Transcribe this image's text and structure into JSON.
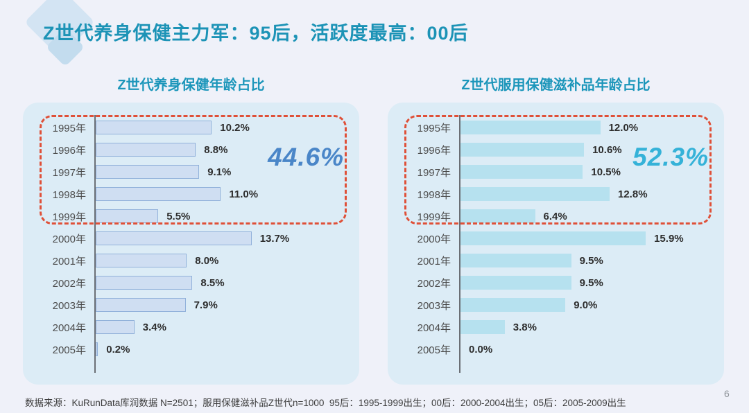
{
  "slide": {
    "title": "Z世代养身保健主力军：95后，活跃度最高：00后",
    "footnote": "数据来源：KuRunData库润数据 N=2501；服用保健滋补品Z世代n=1000  95后：1995-1999出生；00后：2000-2004出生；05后：2005-2009出生",
    "page_number": "6"
  },
  "colors": {
    "page_background": "#eff1f9",
    "panel_background": "#dcecf6",
    "title_teal": "#1c93b6",
    "subtitle_teal": "#1c96ba",
    "left_bar_fill": "#cfdef2",
    "left_bar_border": "#91b1da",
    "right_bar_fill": "#b6e1ef",
    "highlight_box_red": "#df5038",
    "left_big_number_blue": "#4a86c8",
    "right_big_number_cyan": "#35b2d8"
  },
  "chart_data": [
    {
      "type": "bar",
      "orientation": "horizontal",
      "title": "Z世代养身保健年龄占比",
      "categories": [
        "1995年",
        "1996年",
        "1997年",
        "1998年",
        "1999年",
        "2000年",
        "2001年",
        "2002年",
        "2003年",
        "2004年",
        "2005年"
      ],
      "values": [
        10.2,
        8.8,
        9.1,
        11.0,
        5.5,
        13.7,
        8.0,
        8.5,
        7.9,
        3.4,
        0.2
      ],
      "value_labels": [
        "10.2%",
        "8.8%",
        "9.1%",
        "11.0%",
        "5.5%",
        "13.7%",
        "8.0%",
        "8.5%",
        "7.9%",
        "3.4%",
        "0.2%"
      ],
      "bar_color": "#cfdef2",
      "bar_border_color": "#91b1da",
      "xlim": [
        0,
        16
      ],
      "grid": false,
      "legend": false,
      "highlight": {
        "label": "44.6%",
        "color": "#4a86c8",
        "covers_categories": [
          "1995年",
          "1996年",
          "1997年",
          "1998年",
          "1999年"
        ]
      }
    },
    {
      "type": "bar",
      "orientation": "horizontal",
      "title": "Z世代服用保健滋补品年龄占比",
      "categories": [
        "1995年",
        "1996年",
        "1997年",
        "1998年",
        "1999年",
        "2000年",
        "2001年",
        "2002年",
        "2003年",
        "2004年",
        "2005年"
      ],
      "values": [
        12.0,
        10.6,
        10.5,
        12.8,
        6.4,
        15.9,
        9.5,
        9.5,
        9.0,
        3.8,
        0.0
      ],
      "value_labels": [
        "12.0%",
        "10.6%",
        "10.5%",
        "12.8%",
        "6.4%",
        "15.9%",
        "9.5%",
        "9.5%",
        "9.0%",
        "3.8%",
        "0.0%"
      ],
      "bar_color": "#b6e1ef",
      "bar_border_color": null,
      "xlim": [
        0,
        17
      ],
      "grid": false,
      "legend": false,
      "highlight": {
        "label": "52.3%",
        "color": "#35b2d8",
        "covers_categories": [
          "1995年",
          "1996年",
          "1997年",
          "1998年",
          "1999年"
        ]
      }
    }
  ]
}
